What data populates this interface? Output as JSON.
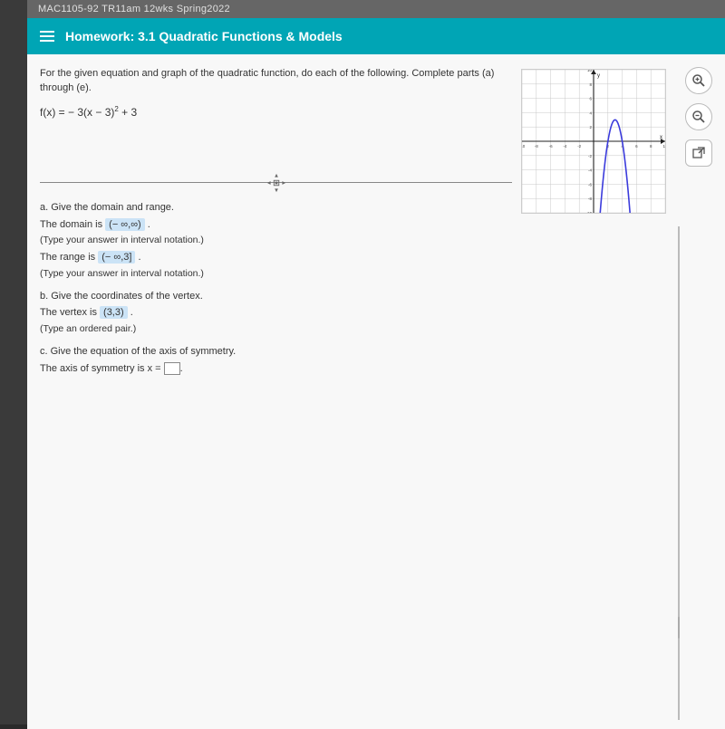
{
  "course_bar": "MAC1105-92 TR11am 12wks Spring2022",
  "hw": {
    "prefix": "Homework:",
    "title": "3.1 Quadratic Functions & Models"
  },
  "problem": {
    "prompt": "For the given equation and graph of the quadratic function, do each of the following. Complete parts (a) through (e).",
    "formula_lhs": "f(x) = ",
    "formula_a": "− 3(x − 3)",
    "formula_exp": "2",
    "formula_tail": " + 3"
  },
  "qa": {
    "a_label": "a. Give the domain and range.",
    "domain_pre": "The domain is ",
    "domain_ans": "(− ∞,∞)",
    "domain_post": " .",
    "domain_hint": "(Type your answer in interval notation.)",
    "range_pre": "The range is ",
    "range_ans": "(− ∞,3]",
    "range_post": " .",
    "range_hint": "(Type your answer in interval notation.)",
    "b_label": "b. Give the coordinates of the vertex.",
    "vertex_pre": "The vertex is ",
    "vertex_ans": "(3,3)",
    "vertex_post": " .",
    "vertex_hint": "(Type an ordered pair.)",
    "c_label": "c. Give the equation of the axis of symmetry.",
    "axis_pre": "The axis of symmetry is x = ",
    "axis_post": "."
  },
  "graph": {
    "xmin": -10,
    "xmax": 10,
    "ymin": -10,
    "ymax": 10,
    "tick_step": 2,
    "axis_color": "#222222",
    "grid_color": "#c8c8c8",
    "curve_color": "#3b3bdc",
    "bg": "#ffffff",
    "label_y": "y",
    "label_x": "x",
    "tick_labels_x": [
      "-10",
      "-8",
      "-6",
      "-4",
      "-2",
      "2",
      "4",
      "6",
      "8",
      "10"
    ],
    "tick_labels_y": [
      "10",
      "8",
      "6",
      "4",
      "2",
      "-2",
      "-4",
      "-6",
      "-8",
      "-10"
    ],
    "curve": {
      "a": -3,
      "h": 3,
      "k": 3
    }
  },
  "tools": {
    "zoom_in": "zoom-in",
    "zoom_out": "zoom-out",
    "popup": "open-external"
  },
  "colors": {
    "hw_bar": "#00a5b5",
    "page_bg": "#f8f8f8",
    "highlight": "#cbe3f6"
  }
}
